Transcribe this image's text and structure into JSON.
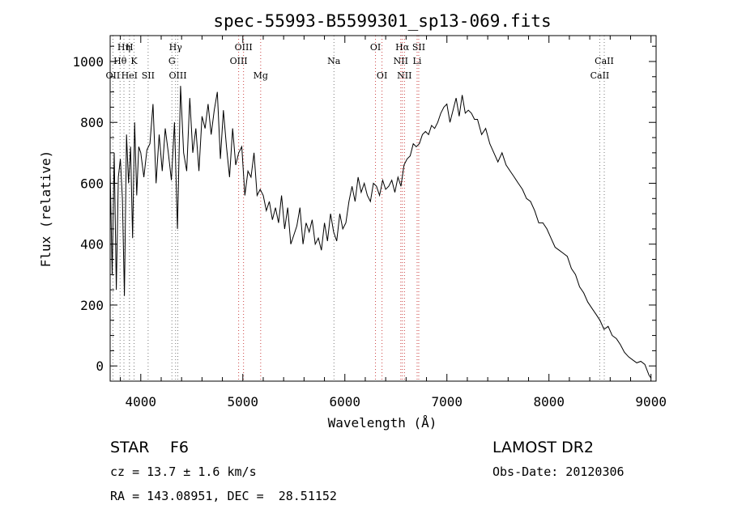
{
  "chart_data": {
    "type": "line",
    "title": "spec-55993-B5599301_sp13-069.fits",
    "xlabel": "Wavelength (Å)",
    "ylabel": "Flux (relative)",
    "xlim": [
      3700,
      9050
    ],
    "ylim": [
      -50,
      1085
    ],
    "xticks": [
      4000,
      5000,
      6000,
      7000,
      8000,
      9000
    ],
    "yticks": [
      0,
      200,
      400,
      600,
      800,
      1000
    ],
    "grid": false,
    "series": [
      {
        "color": "#000000",
        "x": [
          3700,
          3720,
          3740,
          3760,
          3780,
          3800,
          3820,
          3840,
          3860,
          3880,
          3900,
          3920,
          3940,
          3960,
          3980,
          4000,
          4030,
          4060,
          4090,
          4120,
          4150,
          4180,
          4210,
          4240,
          4270,
          4300,
          4330,
          4360,
          4390,
          4420,
          4450,
          4480,
          4510,
          4540,
          4570,
          4600,
          4630,
          4660,
          4690,
          4720,
          4750,
          4780,
          4810,
          4840,
          4870,
          4900,
          4930,
          4960,
          4990,
          5020,
          5050,
          5080,
          5110,
          5140,
          5170,
          5200,
          5230,
          5260,
          5290,
          5320,
          5350,
          5380,
          5410,
          5440,
          5470,
          5500,
          5530,
          5560,
          5590,
          5620,
          5650,
          5680,
          5710,
          5740,
          5770,
          5800,
          5830,
          5860,
          5890,
          5920,
          5950,
          5980,
          6010,
          6040,
          6070,
          6100,
          6130,
          6160,
          6190,
          6220,
          6250,
          6280,
          6310,
          6340,
          6370,
          6400,
          6430,
          6460,
          6490,
          6520,
          6550,
          6580,
          6610,
          6640,
          6670,
          6700,
          6730,
          6760,
          6790,
          6820,
          6850,
          6880,
          6910,
          6940,
          6970,
          7000,
          7030,
          7060,
          7090,
          7120,
          7150,
          7180,
          7210,
          7240,
          7270,
          7300,
          7340,
          7380,
          7420,
          7460,
          7500,
          7540,
          7580,
          7620,
          7660,
          7700,
          7740,
          7780,
          7820,
          7860,
          7900,
          7940,
          7980,
          8020,
          8060,
          8100,
          8140,
          8180,
          8220,
          8260,
          8300,
          8340,
          8380,
          8420,
          8460,
          8500,
          8540,
          8580,
          8620,
          8660,
          8700,
          8740,
          8780,
          8820,
          8860,
          8900,
          8940,
          8980,
          9000
        ],
        "y": [
          640,
          300,
          700,
          250,
          620,
          680,
          550,
          230,
          760,
          600,
          720,
          420,
          800,
          560,
          720,
          700,
          620,
          710,
          730,
          860,
          600,
          760,
          640,
          780,
          700,
          610,
          800,
          450,
          920,
          700,
          640,
          880,
          700,
          780,
          640,
          820,
          780,
          860,
          760,
          840,
          900,
          680,
          840,
          720,
          620,
          780,
          660,
          700,
          720,
          560,
          640,
          620,
          700,
          560,
          580,
          560,
          510,
          540,
          480,
          520,
          470,
          560,
          450,
          520,
          400,
          430,
          460,
          520,
          400,
          470,
          440,
          480,
          400,
          420,
          380,
          470,
          410,
          500,
          440,
          410,
          500,
          450,
          470,
          540,
          590,
          540,
          620,
          570,
          600,
          560,
          540,
          600,
          590,
          560,
          610,
          580,
          590,
          610,
          570,
          620,
          590,
          660,
          680,
          690,
          730,
          720,
          730,
          760,
          770,
          760,
          790,
          780,
          800,
          830,
          850,
          860,
          800,
          840,
          880,
          820,
          890,
          830,
          840,
          830,
          810,
          810,
          760,
          780,
          730,
          700,
          670,
          700,
          660,
          640,
          620,
          600,
          580,
          550,
          540,
          510,
          470,
          470,
          450,
          420,
          390,
          380,
          370,
          360,
          320,
          300,
          260,
          240,
          210,
          190,
          170,
          150,
          120,
          130,
          100,
          90,
          70,
          45,
          30,
          20,
          10,
          15,
          5,
          -30,
          -40
        ]
      }
    ],
    "lines": [
      {
        "name": "Hη",
        "x": 3835,
        "row": 1,
        "color": "#7a7a7a"
      },
      {
        "name": "H",
        "x": 3889,
        "row": 1,
        "color": "#7a7a7a"
      },
      {
        "name": "Hθ",
        "x": 3797,
        "row": 2,
        "color": "#7a7a7a"
      },
      {
        "name": "K",
        "x": 3934,
        "row": 2,
        "color": "#7a7a7a"
      },
      {
        "name": "OII",
        "x": 3727,
        "row": 3,
        "color": "#7a7a7a"
      },
      {
        "name": "HeI",
        "x": 3889,
        "row": 3,
        "color": "#7a7a7a"
      },
      {
        "name": "SII",
        "x": 4072,
        "row": 3,
        "color": "#7a7a7a"
      },
      {
        "name": "Hγ",
        "x": 4341,
        "row": 1,
        "color": "#7a7a7a"
      },
      {
        "name": "G",
        "x": 4305,
        "row": 2,
        "color": "#7a7a7a"
      },
      {
        "name": "OIII",
        "x": 4363,
        "row": 3,
        "color": "#7a7a7a"
      },
      {
        "name": "OIII",
        "x": 5007,
        "row": 1,
        "color": "#cc4444"
      },
      {
        "name": "OIII",
        "x": 4959,
        "row": 2,
        "color": "#cc4444"
      },
      {
        "name": "Mg",
        "x": 5175,
        "row": 3,
        "color": "#cc4444"
      },
      {
        "name": "Na",
        "x": 5893,
        "row": 2,
        "color": "#7a7a7a"
      },
      {
        "name": "OI",
        "x": 6300,
        "row": 1,
        "color": "#cc4444"
      },
      {
        "name": "OI",
        "x": 6364,
        "row": 3,
        "color": "#cc4444"
      },
      {
        "name": "Hα",
        "x": 6563,
        "row": 1,
        "color": "#cc4444"
      },
      {
        "name": "SII",
        "x": 6724,
        "row": 1,
        "color": "#cc4444"
      },
      {
        "name": "NII",
        "x": 6548,
        "row": 2,
        "color": "#cc4444"
      },
      {
        "name": "Li",
        "x": 6708,
        "row": 2,
        "color": "#cc4444"
      },
      {
        "name": "NII",
        "x": 6584,
        "row": 3,
        "color": "#cc4444"
      },
      {
        "name": "CaII",
        "x": 8542,
        "row": 2,
        "color": "#7a7a7a"
      },
      {
        "name": "CaII",
        "x": 8498,
        "row": 3,
        "color": "#7a7a7a"
      }
    ]
  },
  "info": {
    "object_class": "STAR",
    "subclass": "F6",
    "survey": "LAMOST DR2",
    "velocity": "cz = 13.7 ± 1.6 km/s",
    "obs_date": "Obs-Date: 20120306",
    "coords": "RA = 143.08951, DEC =  28.51152"
  }
}
